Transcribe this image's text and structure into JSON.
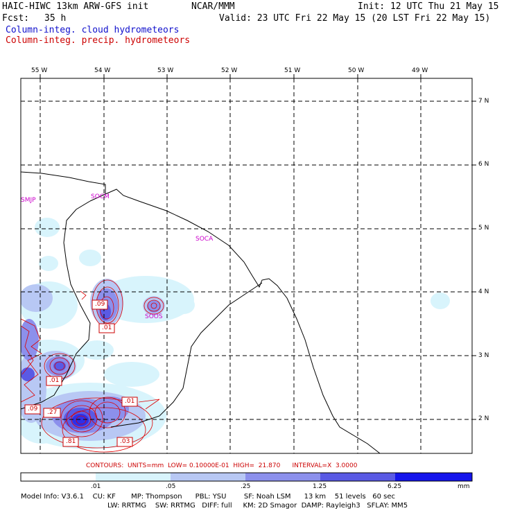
{
  "header": {
    "title_left": "HAIC-HIWC 13km ARW-GFS init",
    "title_org": "NCAR/MMM",
    "init": "Init: 12 UTC Thu 21 May 15",
    "fcst_label": "Fcst:",
    "fcst_value": "35 h",
    "valid": "Valid: 23 UTC Fri 22 May 15 (20 LST Fri 22 May 15)",
    "field_cloud": "Column-integ. cloud hydrometeors",
    "field_precip": "Column-integ. precip. hydrometeors"
  },
  "colors": {
    "cloud_text": "#1010cc",
    "precip_text": "#cc0000",
    "magenta": "#cc00cc",
    "contour": "#dd0000"
  },
  "axes": {
    "lon_labels": [
      "55 W",
      "54 W",
      "53 W",
      "52 W",
      "51 W",
      "50 W",
      "49 W"
    ],
    "lat_labels": [
      "7 N",
      "6 N",
      "5 N",
      "4 N",
      "3 N",
      "2 N"
    ]
  },
  "stations": [
    "SMJP",
    "SOCM",
    "SOCA",
    "SOOS"
  ],
  "contour_labels": [
    ".09",
    ".01",
    ".01",
    ".09",
    ".27",
    ".01",
    ".81",
    ".03"
  ],
  "contours_info": "CONTOURS:  UNITS=mm  LOW= 0.10000E-01  HIGH=  21.870      INTERVAL=X  3.0000",
  "colorbar": {
    "ticks": [
      ".01",
      ".05",
      ".25",
      "1.25",
      "6.25"
    ],
    "units": "mm",
    "colors": [
      "#ffffff",
      "#d8f4fc",
      "#b8c8f4",
      "#8c90ec",
      "#5a5ae4",
      "#2f2fe8",
      "#1010f0"
    ]
  },
  "model_info": {
    "line1": "Model Info: V3.6.1    CU: KF       MP: Thompson      PBL: YSU        SF: Noah LSM      13 km    51 levels   60 sec",
    "line2": "LW: RRTMG    SW: RRTMG   DIFF: full     KM: 2D Smagor  DAMP: Rayleigh3   SFLAY: MM5"
  }
}
